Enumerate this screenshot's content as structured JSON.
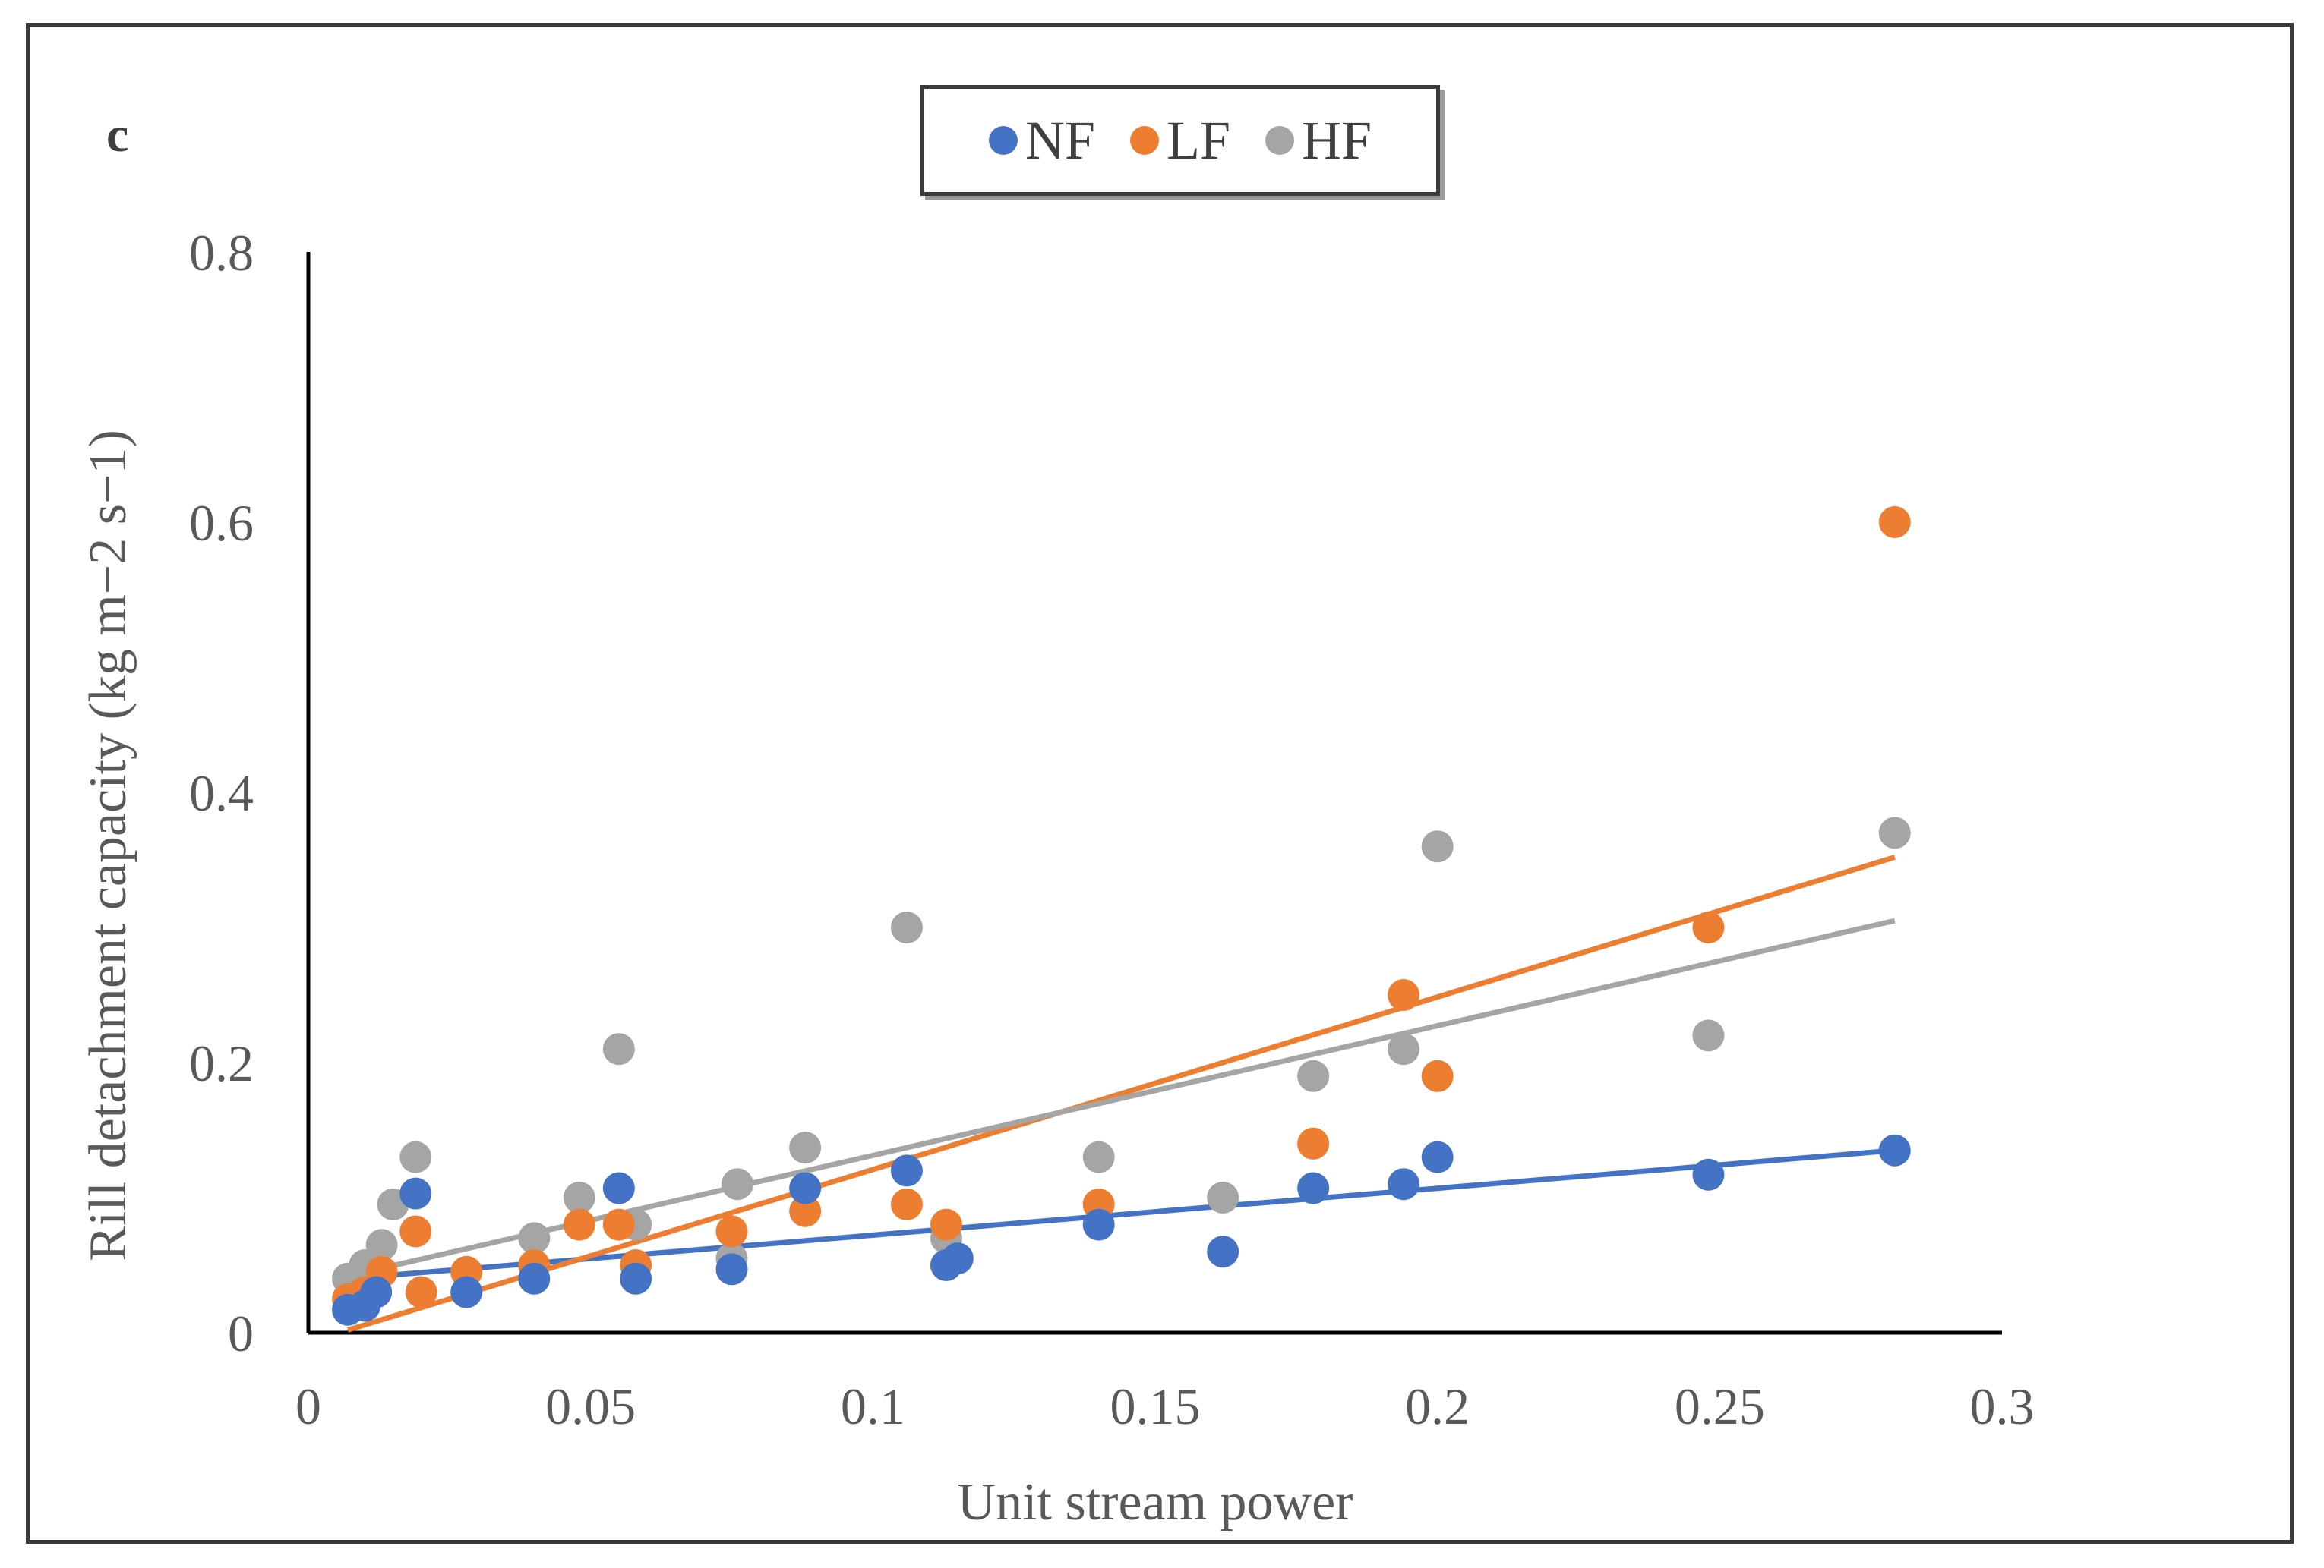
{
  "chart_data": {
    "type": "scatter",
    "panel_label": "c",
    "xlabel": "Unit stream power",
    "ylabel": "Rill  detachment capacity (kg m−2 s−1)",
    "xlim": [
      0,
      0.3
    ],
    "ylim": [
      0,
      0.8
    ],
    "xticks": [
      "0",
      "0.05",
      "0.1",
      "0.15",
      "0.2",
      "0.25",
      "0.3"
    ],
    "yticks": [
      "0",
      "0.2",
      "0.4",
      "0.6",
      "0.8"
    ],
    "legend_position": "top-center",
    "series": [
      {
        "name": "NF",
        "color": "#4472c4",
        "points": [
          [
            0.007,
            0.017
          ],
          [
            0.01,
            0.02
          ],
          [
            0.012,
            0.03
          ],
          [
            0.019,
            0.103
          ],
          [
            0.028,
            0.03
          ],
          [
            0.04,
            0.04
          ],
          [
            0.055,
            0.107
          ],
          [
            0.058,
            0.04
          ],
          [
            0.075,
            0.047
          ],
          [
            0.088,
            0.107
          ],
          [
            0.106,
            0.12
          ],
          [
            0.113,
            0.05
          ],
          [
            0.115,
            0.055
          ],
          [
            0.14,
            0.08
          ],
          [
            0.162,
            0.06
          ],
          [
            0.178,
            0.107
          ],
          [
            0.194,
            0.11
          ],
          [
            0.2,
            0.13
          ],
          [
            0.248,
            0.117
          ],
          [
            0.281,
            0.135
          ]
        ],
        "trendline": [
          [
            0.007,
            0.04
          ],
          [
            0.281,
            0.135
          ]
        ]
      },
      {
        "name": "LF",
        "color": "#ed7d31",
        "points": [
          [
            0.007,
            0.025
          ],
          [
            0.01,
            0.03
          ],
          [
            0.013,
            0.045
          ],
          [
            0.019,
            0.075
          ],
          [
            0.02,
            0.03
          ],
          [
            0.028,
            0.045
          ],
          [
            0.04,
            0.05
          ],
          [
            0.048,
            0.08
          ],
          [
            0.055,
            0.08
          ],
          [
            0.058,
            0.05
          ],
          [
            0.075,
            0.075
          ],
          [
            0.088,
            0.09
          ],
          [
            0.106,
            0.095
          ],
          [
            0.113,
            0.08
          ],
          [
            0.14,
            0.095
          ],
          [
            0.178,
            0.14
          ],
          [
            0.194,
            0.25
          ],
          [
            0.2,
            0.19
          ],
          [
            0.248,
            0.3
          ],
          [
            0.281,
            0.6
          ]
        ],
        "trendline": [
          [
            0.007,
            0.002
          ],
          [
            0.281,
            0.352
          ]
        ]
      },
      {
        "name": "HF",
        "color": "#a5a5a5",
        "points": [
          [
            0.007,
            0.04
          ],
          [
            0.01,
            0.05
          ],
          [
            0.013,
            0.065
          ],
          [
            0.015,
            0.095
          ],
          [
            0.019,
            0.13
          ],
          [
            0.028,
            0.045
          ],
          [
            0.04,
            0.07
          ],
          [
            0.048,
            0.1
          ],
          [
            0.055,
            0.21
          ],
          [
            0.058,
            0.08
          ],
          [
            0.075,
            0.055
          ],
          [
            0.076,
            0.11
          ],
          [
            0.088,
            0.137
          ],
          [
            0.106,
            0.3
          ],
          [
            0.113,
            0.07
          ],
          [
            0.14,
            0.13
          ],
          [
            0.162,
            0.1
          ],
          [
            0.178,
            0.19
          ],
          [
            0.194,
            0.21
          ],
          [
            0.2,
            0.36
          ],
          [
            0.248,
            0.22
          ],
          [
            0.281,
            0.37
          ]
        ],
        "trendline": [
          [
            0.007,
            0.042
          ],
          [
            0.281,
            0.305
          ]
        ]
      }
    ]
  }
}
